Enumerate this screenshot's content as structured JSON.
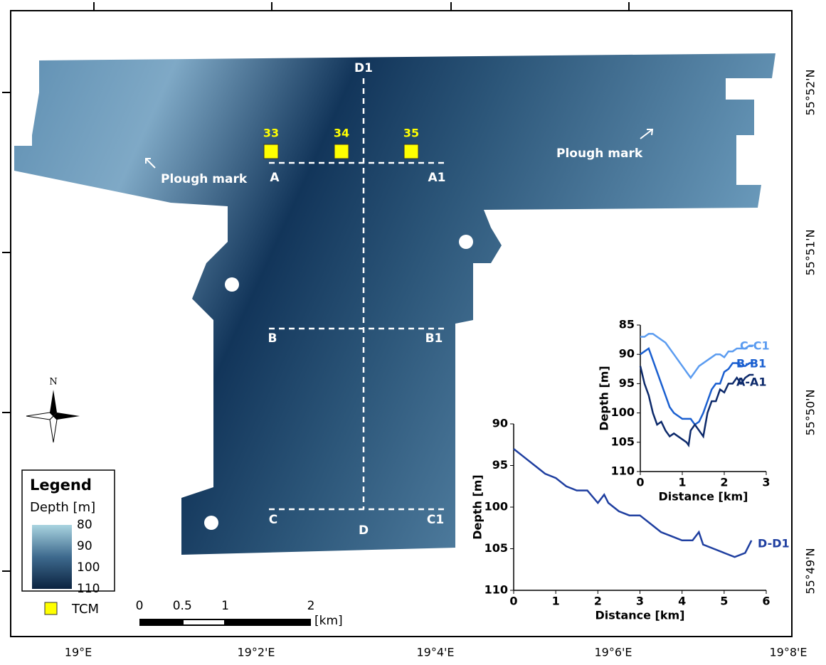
{
  "map": {
    "x_labels": [
      "19°E",
      "19°2'E",
      "19°4'E",
      "19°6'E",
      "19°8'E"
    ],
    "y_labels": [
      "55°52'N",
      "55°51'N",
      "55°50'N",
      "55°49'N"
    ],
    "annotations": [
      "Plough mark",
      "Plough mark"
    ],
    "profile_labels": [
      "A",
      "A1",
      "B",
      "B1",
      "C",
      "C1",
      "D",
      "D1"
    ],
    "stations": [
      "33",
      "34",
      "35"
    ],
    "north": "N",
    "legend": {
      "title": "Legend",
      "subtitle": "Depth [m]",
      "ticks": [
        80,
        90,
        100,
        110
      ],
      "range": [
        80,
        110
      ],
      "marker_label": "TCM"
    },
    "scale_bar": {
      "ticks": [
        0,
        0.5,
        1,
        2
      ],
      "unit": "[km]"
    }
  },
  "chart_data": [
    {
      "type": "line",
      "x_label": "Distance [km]",
      "y_label": "Depth [m]",
      "xlim": [
        0,
        3
      ],
      "xticks": [
        0,
        1,
        2,
        3
      ],
      "ylim": [
        85,
        110
      ],
      "yticks": [
        85,
        90,
        95,
        100,
        105,
        110
      ],
      "y_inverted": true,
      "series": [
        {
          "name": "C-C1",
          "color": "#5b9cf0",
          "x": [
            0,
            0.1,
            0.2,
            0.3,
            0.4,
            0.5,
            0.6,
            0.7,
            0.8,
            0.9,
            1.0,
            1.1,
            1.2,
            1.3,
            1.4,
            1.5,
            1.6,
            1.7,
            1.8,
            1.9,
            2.0,
            2.1,
            2.2,
            2.3,
            2.4,
            2.5,
            2.6,
            2.7
          ],
          "values": [
            87,
            87,
            86.5,
            86.5,
            87,
            87.5,
            88,
            89,
            90,
            91,
            92,
            93,
            94,
            93,
            92,
            91.5,
            91,
            90.5,
            90,
            90,
            90.5,
            89.5,
            89.5,
            89,
            89,
            89,
            88.5,
            88.5
          ]
        },
        {
          "name": "B-B1",
          "color": "#1a5fd0",
          "x": [
            0,
            0.1,
            0.2,
            0.3,
            0.4,
            0.5,
            0.6,
            0.7,
            0.8,
            0.9,
            1.0,
            1.1,
            1.2,
            1.3,
            1.4,
            1.5,
            1.6,
            1.7,
            1.8,
            1.9,
            2.0,
            2.1,
            2.2,
            2.3,
            2.4,
            2.5,
            2.6,
            2.7
          ],
          "values": [
            90,
            89.5,
            89,
            91,
            93,
            95,
            97,
            99,
            100,
            100.5,
            101,
            101,
            101,
            102,
            101.5,
            100,
            98,
            96,
            95,
            95,
            93,
            92.5,
            91.5,
            91.5,
            92,
            92,
            91.5,
            91.5
          ]
        },
        {
          "name": "A-A1",
          "color": "#0d2a6b",
          "x": [
            0,
            0.1,
            0.2,
            0.3,
            0.4,
            0.5,
            0.6,
            0.7,
            0.8,
            0.9,
            1.0,
            1.1,
            1.15,
            1.2,
            1.3,
            1.4,
            1.5,
            1.6,
            1.7,
            1.8,
            1.9,
            2.0,
            2.1,
            2.2,
            2.3,
            2.4,
            2.5,
            2.6,
            2.7
          ],
          "values": [
            92,
            95,
            97,
            100,
            102,
            101.5,
            103,
            104,
            103.5,
            104,
            104.5,
            105,
            105.5,
            103,
            102,
            103,
            104,
            100,
            98,
            98,
            96,
            96.5,
            95,
            95,
            94,
            95,
            94,
            93.5,
            93.5
          ]
        }
      ]
    },
    {
      "type": "line",
      "x_label": "Distance [km]",
      "y_label": "Depth [m]",
      "xlim": [
        0,
        6
      ],
      "xticks": [
        0,
        1,
        2,
        3,
        4,
        5,
        6
      ],
      "ylim": [
        90,
        110
      ],
      "yticks": [
        90,
        95,
        100,
        105,
        110
      ],
      "y_inverted": true,
      "series": [
        {
          "name": "D-D1",
          "color": "#1f3fa0",
          "x": [
            0,
            0.25,
            0.5,
            0.75,
            1.0,
            1.25,
            1.5,
            1.75,
            2.0,
            2.15,
            2.25,
            2.5,
            2.75,
            3.0,
            3.25,
            3.5,
            3.75,
            4.0,
            4.25,
            4.4,
            4.5,
            4.75,
            5.0,
            5.25,
            5.5,
            5.65
          ],
          "values": [
            93,
            94,
            95,
            96,
            96.5,
            97.5,
            98,
            98,
            99.5,
            98.5,
            99.5,
            100.5,
            101,
            101,
            102,
            103,
            103.5,
            104,
            104,
            103,
            104.5,
            105,
            105.5,
            106,
            105.5,
            104
          ]
        }
      ]
    }
  ]
}
